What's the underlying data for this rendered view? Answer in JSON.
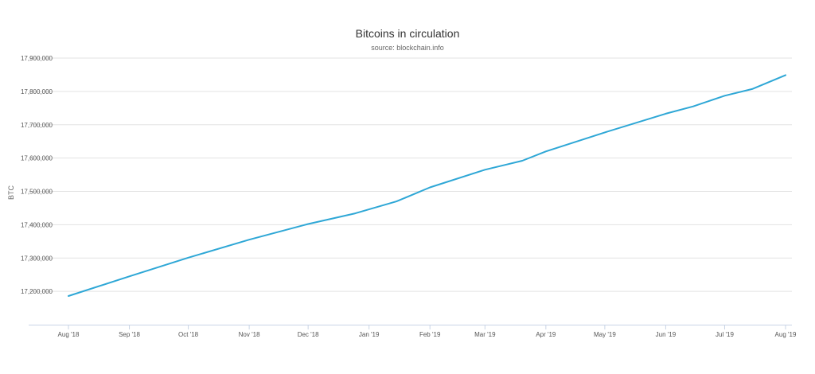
{
  "chart_data": {
    "type": "line",
    "title": "Bitcoins in circulation",
    "subtitle": "source: blockchain.info",
    "xlabel": "",
    "ylabel": "BTC",
    "ylim": [
      17100000,
      17900000
    ],
    "y_ticks": [
      "17,200,000",
      "17,300,000",
      "17,400,000",
      "17,500,000",
      "17,600,000",
      "17,700,000",
      "17,800,000",
      "17,900,000"
    ],
    "x_ticks": [
      "Aug '18",
      "Sep '18",
      "Oct '18",
      "Nov '18",
      "Dec '18",
      "Jan '19",
      "Feb '19",
      "Mar '19",
      "Apr '19",
      "May '19",
      "Jun '19",
      "Jul '19",
      "Aug '19"
    ],
    "grid": true,
    "legend": "none",
    "series": [
      {
        "color": "#2ea7d6",
        "points": [
          [
            "2018-08-01",
            17186000
          ],
          [
            "2018-09-01",
            17245000
          ],
          [
            "2018-10-01",
            17301000
          ],
          [
            "2018-11-01",
            17355000
          ],
          [
            "2018-12-01",
            17402000
          ],
          [
            "2018-12-25",
            17434000
          ],
          [
            "2019-01-15",
            17470000
          ],
          [
            "2019-02-01",
            17512000
          ],
          [
            "2019-03-01",
            17565000
          ],
          [
            "2019-03-20",
            17592000
          ],
          [
            "2019-04-01",
            17620000
          ],
          [
            "2019-05-01",
            17677000
          ],
          [
            "2019-06-01",
            17733000
          ],
          [
            "2019-06-15",
            17755000
          ],
          [
            "2019-07-01",
            17787000
          ],
          [
            "2019-07-15",
            17807000
          ],
          [
            "2019-08-01",
            17849000
          ]
        ]
      }
    ]
  }
}
